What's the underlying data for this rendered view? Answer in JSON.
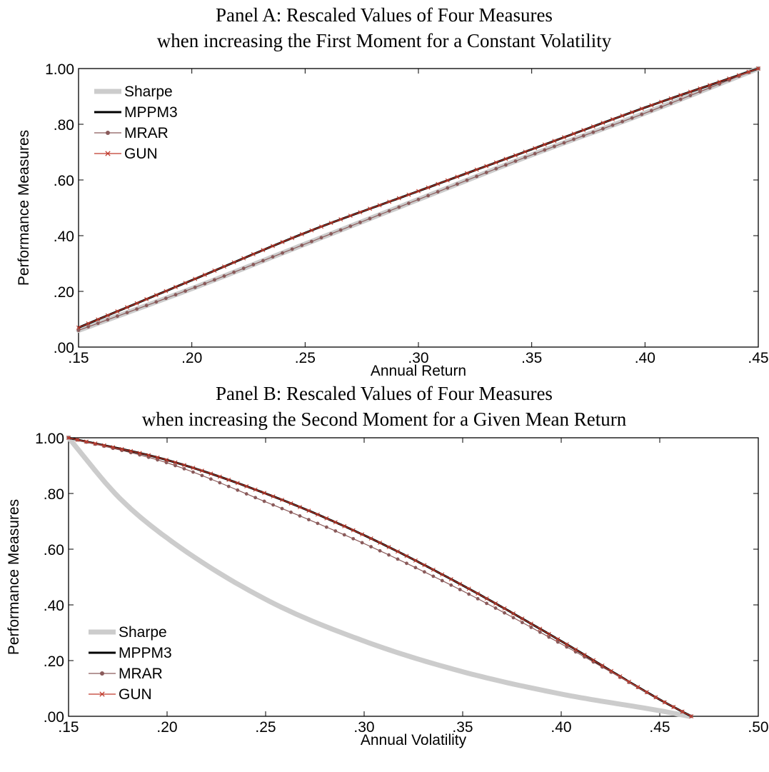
{
  "chart_data": [
    {
      "type": "line",
      "title": "Panel A: Rescaled Values of Four Measures",
      "subtitle": "when increasing the First Moment for a Constant Volatility",
      "xlabel": "Annual Return",
      "ylabel": "Performance Measures",
      "xlim": [
        0.15,
        0.45
      ],
      "ylim": [
        0.0,
        1.0
      ],
      "xticks": [
        ".15",
        ".20",
        ".25",
        ".30",
        ".35",
        ".40",
        ".45"
      ],
      "yticks": [
        ".00",
        ".20",
        ".40",
        ".60",
        ".80",
        "1.00"
      ],
      "legend_position": "top-left",
      "grid": false,
      "series": [
        {
          "name": "Sharpe",
          "color": "#cccccc",
          "marker": "none",
          "x": [
            0.15,
            0.2,
            0.25,
            0.3,
            0.35,
            0.4,
            0.45
          ],
          "y": [
            0.06,
            0.21,
            0.37,
            0.53,
            0.69,
            0.84,
            1.0
          ]
        },
        {
          "name": "MPPM3",
          "color": "#000000",
          "marker": "none",
          "x": [
            0.15,
            0.2,
            0.25,
            0.3,
            0.35,
            0.4,
            0.45
          ],
          "y": [
            0.07,
            0.24,
            0.41,
            0.56,
            0.71,
            0.86,
            1.0
          ]
        },
        {
          "name": "MRAR",
          "color": "#8a5a5a",
          "marker": "dot",
          "x": [
            0.15,
            0.2,
            0.25,
            0.3,
            0.35,
            0.4,
            0.45
          ],
          "y": [
            0.06,
            0.21,
            0.37,
            0.53,
            0.69,
            0.84,
            1.0
          ]
        },
        {
          "name": "GUN",
          "color": "#c0392b",
          "marker": "x",
          "x": [
            0.15,
            0.2,
            0.25,
            0.3,
            0.35,
            0.4,
            0.45
          ],
          "y": [
            0.07,
            0.24,
            0.41,
            0.56,
            0.71,
            0.86,
            1.0
          ]
        }
      ]
    },
    {
      "type": "line",
      "title": "Panel B: Rescaled Values of Four Measures",
      "subtitle": "when increasing the Second Moment for a Given Mean Return",
      "xlabel": "Annual Volatility",
      "ylabel": "Performance Measures",
      "xlim": [
        0.15,
        0.5
      ],
      "ylim": [
        0.0,
        1.0
      ],
      "xticks": [
        ".15",
        ".20",
        ".25",
        ".30",
        ".35",
        ".40",
        ".45",
        ".50"
      ],
      "yticks": [
        ".00",
        ".20",
        ".40",
        ".60",
        ".80",
        "1.00"
      ],
      "legend_position": "bottom-left",
      "grid": false,
      "series": [
        {
          "name": "Sharpe",
          "color": "#cccccc",
          "marker": "none",
          "x": [
            0.15,
            0.175,
            0.2,
            0.25,
            0.3,
            0.35,
            0.4,
            0.45,
            0.465
          ],
          "y": [
            1.0,
            0.79,
            0.64,
            0.42,
            0.27,
            0.16,
            0.08,
            0.02,
            0.0
          ]
        },
        {
          "name": "MPPM3",
          "color": "#000000",
          "marker": "none",
          "x": [
            0.15,
            0.2,
            0.25,
            0.3,
            0.35,
            0.4,
            0.45,
            0.466
          ],
          "y": [
            1.0,
            0.92,
            0.8,
            0.65,
            0.47,
            0.27,
            0.06,
            0.0
          ]
        },
        {
          "name": "MRAR",
          "color": "#8a5a5a",
          "marker": "dot",
          "x": [
            0.15,
            0.2,
            0.25,
            0.3,
            0.35,
            0.4,
            0.45,
            0.466
          ],
          "y": [
            1.0,
            0.91,
            0.77,
            0.62,
            0.45,
            0.26,
            0.06,
            0.0
          ]
        },
        {
          "name": "GUN",
          "color": "#c0392b",
          "marker": "x",
          "x": [
            0.15,
            0.2,
            0.25,
            0.3,
            0.35,
            0.4,
            0.45,
            0.466
          ],
          "y": [
            1.0,
            0.92,
            0.8,
            0.65,
            0.47,
            0.27,
            0.06,
            0.0
          ]
        }
      ]
    }
  ]
}
